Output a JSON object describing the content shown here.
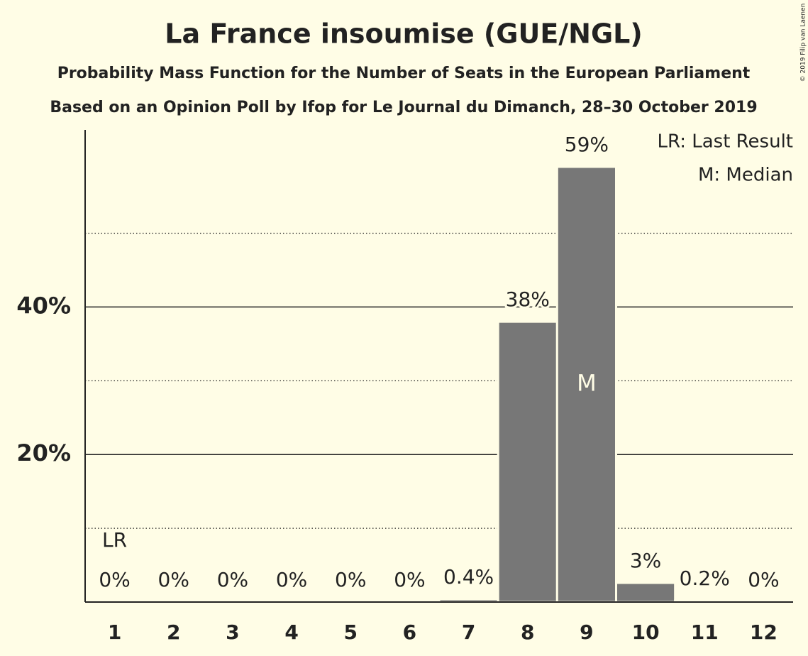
{
  "chart_data": {
    "type": "bar",
    "title": "La France insoumise (GUE/NGL)",
    "subtitle": "Probability Mass Function for the Number of Seats in the European Parliament",
    "subtitle2": "Based on an Opinion Poll by Ifop for Le Journal du Dimanch, 28–30 October 2019",
    "copyright": "© 2019 Filip van Laenen",
    "categories": [
      "1",
      "2",
      "3",
      "4",
      "5",
      "6",
      "7",
      "8",
      "9",
      "10",
      "11",
      "12"
    ],
    "values": [
      0,
      0,
      0,
      0,
      0,
      0,
      0.4,
      38,
      59,
      2.6,
      0.2,
      0
    ],
    "value_labels": [
      "0%",
      "0%",
      "0%",
      "0%",
      "0%",
      "0%",
      "0.4%",
      "38%",
      "59%",
      "3%",
      "0.2%",
      "0%"
    ],
    "color": "#777777",
    "ylim": [
      0,
      64
    ],
    "yticks": [
      {
        "value": 20,
        "label": "20%"
      },
      {
        "value": 40,
        "label": "40%"
      }
    ],
    "minor_yticks": [
      10,
      30,
      50
    ],
    "grid": true,
    "legend": [
      "LR: Last Result",
      "M: Median"
    ],
    "legend_position": "upper right",
    "annotations": [
      {
        "text": "LR",
        "category": "1",
        "position": "above-label"
      },
      {
        "text": "M",
        "category": "9",
        "position": "inside"
      }
    ]
  }
}
